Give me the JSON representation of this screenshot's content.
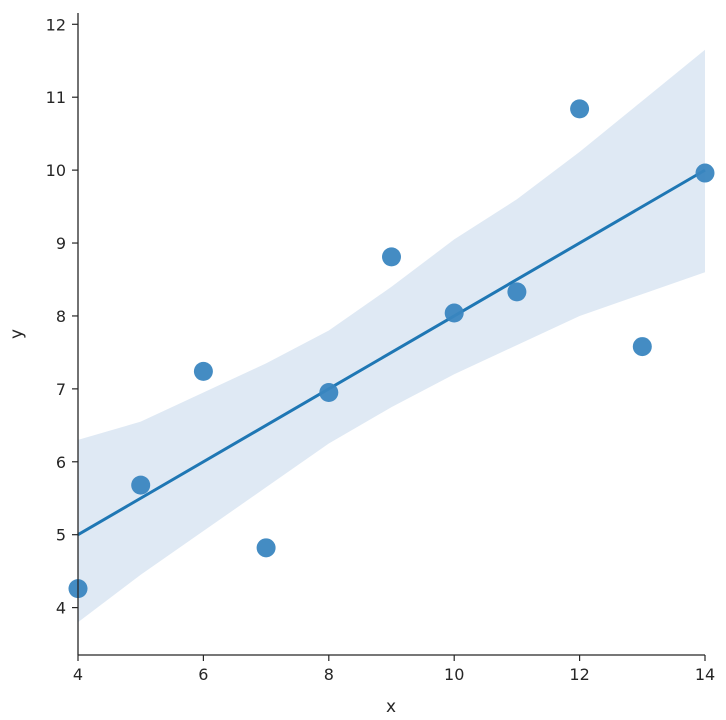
{
  "chart_data": {
    "type": "scatter",
    "title": "",
    "xlabel": "x",
    "ylabel": "y",
    "xlim": [
      4,
      14
    ],
    "ylim": [
      3.35,
      12.1
    ],
    "xticks": [
      "4",
      "6",
      "8",
      "10",
      "12",
      "14"
    ],
    "yticks": [
      "4",
      "5",
      "6",
      "7",
      "8",
      "9",
      "10",
      "11",
      "12"
    ],
    "grid": false,
    "legend": "none",
    "colors": {
      "points": "#3a86c0",
      "line": "#1f77b4",
      "band": "#dbe7f3",
      "axis": "#262626"
    },
    "points": [
      {
        "x": 4,
        "y": 4.26
      },
      {
        "x": 5,
        "y": 5.68
      },
      {
        "x": 6,
        "y": 7.24
      },
      {
        "x": 7,
        "y": 4.82
      },
      {
        "x": 8,
        "y": 6.95
      },
      {
        "x": 9,
        "y": 8.81
      },
      {
        "x": 10,
        "y": 8.04
      },
      {
        "x": 11,
        "y": 8.33
      },
      {
        "x": 12,
        "y": 10.84
      },
      {
        "x": 13,
        "y": 7.58
      },
      {
        "x": 14,
        "y": 9.96
      }
    ],
    "regression": {
      "x": [
        4,
        14
      ],
      "y": [
        5.0,
        10.0
      ]
    },
    "confidence_band": {
      "x": [
        4,
        5,
        6,
        7,
        8,
        9,
        10,
        11,
        12,
        13,
        14
      ],
      "upper": [
        6.3,
        6.55,
        6.95,
        7.35,
        7.8,
        8.4,
        9.05,
        9.6,
        10.25,
        10.95,
        11.65
      ],
      "lower": [
        3.8,
        4.45,
        5.05,
        5.65,
        6.25,
        6.75,
        7.2,
        7.6,
        8.0,
        8.3,
        8.6
      ]
    }
  }
}
